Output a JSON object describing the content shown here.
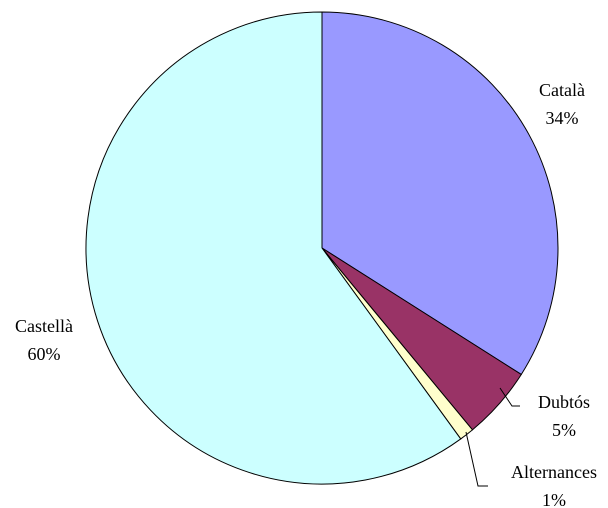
{
  "chart_data": {
    "type": "pie",
    "title": "",
    "slices": [
      {
        "label": "Català",
        "value": 34,
        "display_value": "34%",
        "color": "#9999FF"
      },
      {
        "label": "Dubtós",
        "value": 5,
        "display_value": "5%",
        "color": "#993366"
      },
      {
        "label": "Alternances",
        "value": 1,
        "display_value": "1%",
        "color": "#FFFFCC"
      },
      {
        "label": "Castellà",
        "value": 60,
        "display_value": "60%",
        "color": "#CCFFFF"
      }
    ],
    "legend": "none"
  }
}
